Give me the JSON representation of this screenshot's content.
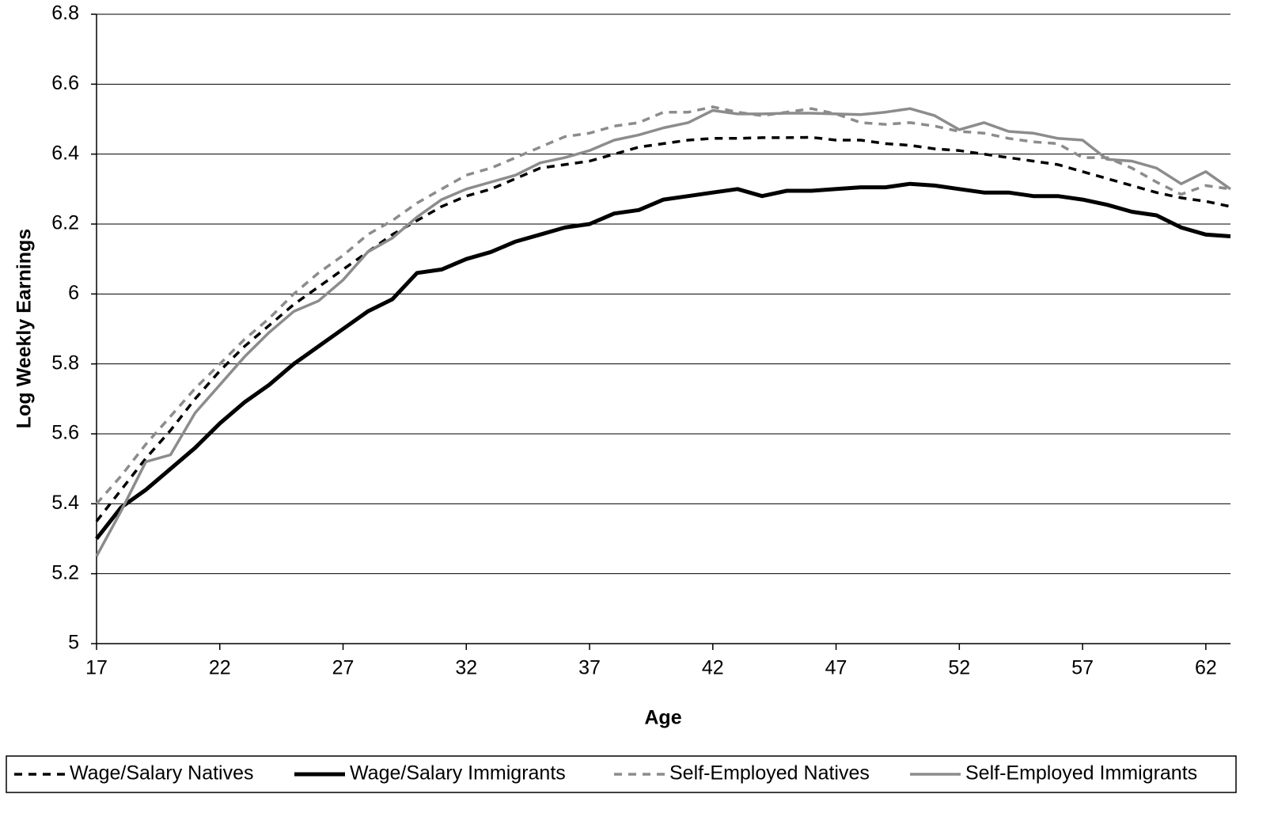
{
  "chart_data": {
    "type": "line",
    "y_label": "Log Weekly Earnings",
    "x_label": "Age",
    "x": [
      17,
      18,
      19,
      20,
      21,
      22,
      23,
      24,
      25,
      26,
      27,
      28,
      29,
      30,
      31,
      32,
      33,
      34,
      35,
      36,
      37,
      38,
      39,
      40,
      41,
      42,
      43,
      44,
      45,
      46,
      47,
      48,
      49,
      50,
      51,
      52,
      53,
      54,
      55,
      56,
      57,
      58,
      59,
      60,
      61,
      62,
      63
    ],
    "xlim": [
      17,
      63
    ],
    "xticks": [
      17,
      22,
      27,
      32,
      37,
      42,
      47,
      52,
      57,
      62
    ],
    "ylim": [
      5,
      6.8
    ],
    "yticks": [
      5,
      5.2,
      5.4,
      5.6,
      5.8,
      6,
      6.2,
      6.4,
      6.6,
      6.8
    ],
    "grid": true,
    "legend": "bottom",
    "series": [
      {
        "name": "Wage/Salary Natives",
        "color": "#000000",
        "line_style": "dashed",
        "values": [
          5.35,
          5.44,
          5.53,
          5.61,
          5.7,
          5.78,
          5.85,
          5.91,
          5.97,
          6.02,
          6.07,
          6.12,
          6.17,
          6.21,
          6.25,
          6.28,
          6.3,
          6.33,
          6.36,
          6.37,
          6.38,
          6.4,
          6.42,
          6.43,
          6.44,
          6.445,
          6.445,
          6.447,
          6.447,
          6.448,
          6.44,
          6.44,
          6.43,
          6.425,
          6.415,
          6.41,
          6.4,
          6.39,
          6.38,
          6.37,
          6.35,
          6.33,
          6.31,
          6.29,
          6.275,
          6.265,
          6.25
        ]
      },
      {
        "name": "Wage/Salary Immigrants",
        "color": "#000000",
        "line_style": "solid",
        "values": [
          5.3,
          5.39,
          5.44,
          5.5,
          5.56,
          5.63,
          5.69,
          5.74,
          5.8,
          5.85,
          5.9,
          5.95,
          5.985,
          6.06,
          6.07,
          6.1,
          6.12,
          6.15,
          6.17,
          6.19,
          6.2,
          6.23,
          6.24,
          6.27,
          6.28,
          6.29,
          6.3,
          6.28,
          6.295,
          6.295,
          6.3,
          6.305,
          6.305,
          6.315,
          6.31,
          6.3,
          6.29,
          6.29,
          6.28,
          6.28,
          6.27,
          6.255,
          6.235,
          6.225,
          6.19,
          6.17,
          6.165
        ]
      },
      {
        "name": "Self-Employed Natives",
        "color": "#8c8c8c",
        "line_style": "dashed",
        "values": [
          5.4,
          5.48,
          5.57,
          5.65,
          5.73,
          5.8,
          5.87,
          5.93,
          6.0,
          6.06,
          6.11,
          6.17,
          6.21,
          6.26,
          6.3,
          6.34,
          6.36,
          6.39,
          6.42,
          6.45,
          6.46,
          6.48,
          6.49,
          6.52,
          6.52,
          6.535,
          6.52,
          6.51,
          6.52,
          6.53,
          6.515,
          6.49,
          6.485,
          6.49,
          6.48,
          6.465,
          6.46,
          6.445,
          6.435,
          6.43,
          6.39,
          6.39,
          6.36,
          6.32,
          6.285,
          6.31,
          6.3
        ]
      },
      {
        "name": "Self-Employed Immigrants",
        "color": "#8c8c8c",
        "line_style": "solid",
        "values": [
          5.25,
          5.38,
          5.52,
          5.54,
          5.66,
          5.74,
          5.82,
          5.89,
          5.95,
          5.98,
          6.04,
          6.12,
          6.16,
          6.22,
          6.27,
          6.3,
          6.32,
          6.34,
          6.375,
          6.39,
          6.41,
          6.44,
          6.455,
          6.475,
          6.49,
          6.525,
          6.515,
          6.515,
          6.517,
          6.517,
          6.515,
          6.513,
          6.52,
          6.53,
          6.51,
          6.47,
          6.49,
          6.465,
          6.46,
          6.445,
          6.44,
          6.385,
          6.38,
          6.36,
          6.315,
          6.35,
          6.3
        ]
      }
    ]
  }
}
